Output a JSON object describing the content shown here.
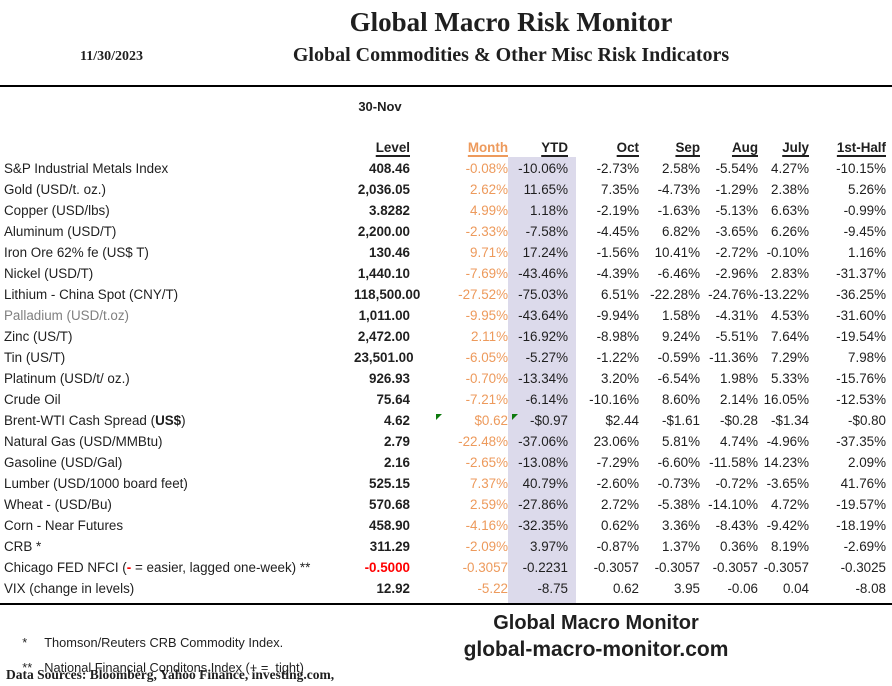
{
  "header": {
    "date": "11/30/2023",
    "title": "Global Macro Risk Monitor",
    "subtitle": "Global Commodities & Other Misc Risk Indicators",
    "asof_label": "30-Nov"
  },
  "colors": {
    "month_accent": "#ED9A5C",
    "ytd_band": "#DCDAEB",
    "negative_alert": "#FF0000",
    "muted_label": "#808080",
    "comment_flag_green": "#0D7A0D"
  },
  "table": {
    "columns": [
      "Level",
      "Month",
      "YTD",
      "Oct",
      "Sep",
      "Aug",
      "July",
      "1st-Half"
    ],
    "rows": [
      {
        "label": "S&P Industrial Metals Index",
        "level": "408.46",
        "values": [
          "-0.08%",
          "-10.06%",
          "-2.73%",
          "2.58%",
          "-5.54%",
          "4.27%",
          "-10.15%"
        ]
      },
      {
        "label": "Gold (USD/t. oz.)",
        "level": "2,036.05",
        "values": [
          "2.62%",
          "11.65%",
          "7.35%",
          "-4.73%",
          "-1.29%",
          "2.38%",
          "5.26%"
        ]
      },
      {
        "label": "Copper (USD/lbs)",
        "level": "3.8282",
        "values": [
          "4.99%",
          "1.18%",
          "-2.19%",
          "-1.63%",
          "-5.13%",
          "6.63%",
          "-0.99%"
        ]
      },
      {
        "label": "Aluminum (USD/T)",
        "level": "2,200.00",
        "values": [
          "-2.33%",
          "-7.58%",
          "-4.45%",
          "6.82%",
          "-3.65%",
          "6.26%",
          "-9.45%"
        ]
      },
      {
        "label": "Iron Ore 62% fe (US$ T)",
        "level": "130.46",
        "values": [
          "9.71%",
          "17.24%",
          "-1.56%",
          "10.41%",
          "-2.72%",
          "-0.10%",
          "1.16%"
        ]
      },
      {
        "label": "Nickel (USD/T)",
        "level": "1,440.10",
        "values": [
          "-7.69%",
          "-43.46%",
          "-4.39%",
          "-6.46%",
          "-2.96%",
          "2.83%",
          "-31.37%"
        ]
      },
      {
        "label": "Lithium - China Spot (CNY/T)",
        "level": "118,500.00",
        "values": [
          "-27.52%",
          "-75.03%",
          "6.51%",
          "-22.28%",
          "-24.76%",
          "-13.22%",
          "-36.25%"
        ]
      },
      {
        "label": "Palladium (USD/t.oz)",
        "label_color": "#808080",
        "level": "1,011.00",
        "values": [
          "-9.95%",
          "-43.64%",
          "-9.94%",
          "1.58%",
          "-4.31%",
          "4.53%",
          "-31.60%"
        ]
      },
      {
        "label": "Zinc (US/T)",
        "level": "2,472.00",
        "values": [
          "2.11%",
          "-16.92%",
          "-8.98%",
          "9.24%",
          "-5.51%",
          "7.64%",
          "-19.54%"
        ]
      },
      {
        "label": "Tin (US/T)",
        "level": "23,501.00",
        "values": [
          "-6.05%",
          "-5.27%",
          "-1.22%",
          "-0.59%",
          "-11.36%",
          "7.29%",
          "7.98%"
        ]
      },
      {
        "label": "Platinum (USD/t/ oz.)",
        "level": "926.93",
        "values": [
          "-0.70%",
          "-13.34%",
          "3.20%",
          "-6.54%",
          "1.98%",
          "5.33%",
          "-15.76%"
        ]
      },
      {
        "label": "Crude Oil",
        "level": "75.64",
        "values": [
          "-7.21%",
          "-6.14%",
          "-10.16%",
          "8.60%",
          "2.14%",
          "16.05%",
          "-12.53%"
        ]
      },
      {
        "label": "Brent-WTI Cash Spread (US$)",
        "label_parts": [
          {
            "t": "Brent-WTI Cash Spread ("
          },
          {
            "t": "US$",
            "bold": true
          },
          {
            "t": ")"
          }
        ],
        "level": "4.62",
        "values": [
          "$0.62",
          "-$0.97",
          "$2.44",
          "-$1.61",
          "-$0.28",
          "-$1.34",
          "-$0.80"
        ],
        "comments": [
          0,
          1
        ]
      },
      {
        "label": "Natural Gas  (USD/MMBtu)",
        "level": "2.79",
        "values": [
          "-22.48%",
          "-37.06%",
          "23.06%",
          "5.81%",
          "4.74%",
          "-4.96%",
          "-37.35%"
        ]
      },
      {
        "label": "Gasoline (USD/Gal)",
        "level": "2.16",
        "values": [
          "-2.65%",
          "-13.08%",
          "-7.29%",
          "-6.60%",
          "-11.58%",
          "14.23%",
          "2.09%"
        ]
      },
      {
        "label": "Lumber (USD/1000 board feet)",
        "level": "525.15",
        "values": [
          "7.37%",
          "40.79%",
          "-2.60%",
          "-0.73%",
          "-0.72%",
          "-3.65%",
          "41.76%"
        ]
      },
      {
        "label": "Wheat - (USD/Bu)",
        "level": "570.68",
        "values": [
          "2.59%",
          "-27.86%",
          "2.72%",
          "-5.38%",
          "-14.10%",
          "4.72%",
          "-19.57%"
        ]
      },
      {
        "label": "Corn - Near Futures",
        "level": "458.90",
        "values": [
          "-4.16%",
          "-32.35%",
          "0.62%",
          "3.36%",
          "-8.43%",
          "-9.42%",
          "-18.19%"
        ]
      },
      {
        "label": "CRB *",
        "level": "311.29",
        "values": [
          "-2.09%",
          "3.97%",
          "-0.87%",
          "1.37%",
          "0.36%",
          "8.19%",
          "-2.69%"
        ]
      },
      {
        "label": "Chicago FED NFCI (- = easier, lagged one-week) **",
        "label_parts": [
          {
            "t": "Chicago FED NFCI ("
          },
          {
            "t": "-",
            "bold": true,
            "color": "#FF0000"
          },
          {
            "t": " = easier, lagged one-week) **"
          }
        ],
        "level": "-0.5000",
        "level_color": "#FF0000",
        "values": [
          "-0.3057",
          "-0.2231",
          "-0.3057",
          "-0.3057",
          "-0.3057",
          "-0.3057",
          "-0.3025"
        ]
      },
      {
        "label": "VIX (change in levels)",
        "level": "12.92",
        "values": [
          "-5.22",
          "-8.75",
          "0.62",
          "3.95",
          "-0.06",
          "0.04",
          "-8.08"
        ]
      }
    ]
  },
  "footer": {
    "footnotes": [
      {
        "marker": "*",
        "text": "Thomson/Reuters CRB Commodity Index."
      },
      {
        "marker": "**",
        "text": "National Financial Conditons Index (+ =  tight)"
      }
    ],
    "data_sources": "Data Sources:  Bloomberg,  Yahoo Finance, investing.com,",
    "brand_line1": "Global Macro Monitor",
    "brand_line2": "global-macro-monitor.com"
  }
}
